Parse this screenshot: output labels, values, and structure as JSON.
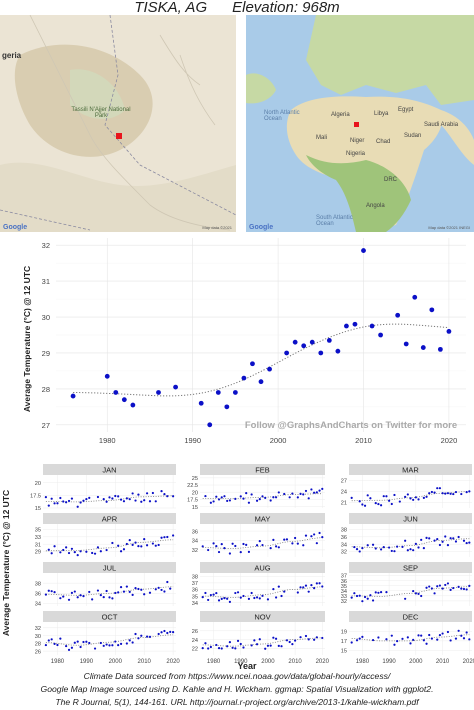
{
  "header": {
    "title": "TISKA, AG      Elevation: 968m"
  },
  "maps": {
    "local": {
      "labels": [
        "geria",
        "Tassili N'Ajjer National Park"
      ],
      "credit": "Map data ©2021",
      "logo": "Google",
      "marker_color": "#e8141c"
    },
    "world": {
      "labels": [
        "Algeria",
        "Libya",
        "Egypt",
        "Mali",
        "Niger",
        "Chad",
        "Sudan",
        "Nigeria",
        "Saudi Arabia",
        "DRC",
        "Angola",
        "South Atlantic Ocean",
        "North Atlantic Ocean"
      ],
      "credit": "Map data ©2021 INEGI",
      "logo": "Google",
      "marker_color": "#e8141c"
    }
  },
  "chart_data": [
    {
      "type": "scatter",
      "ylabel": "Average Temperature (°C) @ 12 UTC",
      "xlabel": "Year",
      "xlim": [
        1974,
        2022
      ],
      "ylim": [
        26.8,
        32.2
      ],
      "xticks": [
        1980,
        1990,
        2000,
        2010,
        2020
      ],
      "yticks": [
        27,
        28,
        29,
        30,
        31,
        32
      ],
      "point_color": "#0b10c7",
      "trend": "dotted loess",
      "annotation": "Follow @GraphsAndCharts on Twitter for more",
      "points": [
        [
          1976,
          27.8
        ],
        [
          1980,
          28.35
        ],
        [
          1981,
          27.9
        ],
        [
          1982,
          27.7
        ],
        [
          1983,
          27.55
        ],
        [
          1986,
          27.9
        ],
        [
          1988,
          28.05
        ],
        [
          1991,
          27.6
        ],
        [
          1992,
          27.0
        ],
        [
          1993,
          27.9
        ],
        [
          1994,
          27.5
        ],
        [
          1995,
          27.9
        ],
        [
          1996,
          28.3
        ],
        [
          1997,
          28.7
        ],
        [
          1998,
          28.2
        ],
        [
          1999,
          28.55
        ],
        [
          2001,
          29.0
        ],
        [
          2002,
          29.3
        ],
        [
          2003,
          29.2
        ],
        [
          2004,
          29.3
        ],
        [
          2005,
          29.0
        ],
        [
          2006,
          29.35
        ],
        [
          2007,
          29.05
        ],
        [
          2008,
          29.75
        ],
        [
          2009,
          29.8
        ],
        [
          2010,
          31.85
        ],
        [
          2011,
          29.75
        ],
        [
          2012,
          29.5
        ],
        [
          2014,
          30.05
        ],
        [
          2015,
          29.25
        ],
        [
          2016,
          30.55
        ],
        [
          2017,
          29.15
        ],
        [
          2018,
          30.2
        ],
        [
          2019,
          29.1
        ],
        [
          2020,
          29.6
        ]
      ]
    },
    {
      "type": "scatter",
      "layout": "facets",
      "ylabel": "Average Temperature (°C) @ 12 UTC",
      "xlabel": "Year",
      "xlim": [
        1975,
        2021
      ],
      "xticks": [
        1980,
        1990,
        2000,
        2010,
        2020
      ],
      "xtick_labels": [
        "1980",
        "1990",
        "2000",
        "2010",
        "2020"
      ],
      "point_color": "#0b10c7",
      "panels": [
        {
          "name": "JAN",
          "ylim": [
            15,
            21.5
          ],
          "yticks": [
            15.0,
            17.5,
            20.0
          ],
          "trend": [
            16.3,
            16.2,
            16.5,
            17.2,
            17.4
          ]
        },
        {
          "name": "FEB",
          "ylim": [
            14.5,
            26
          ],
          "yticks": [
            15.0,
            17.5,
            20.0,
            22.5,
            25.0
          ],
          "trend": [
            17.8,
            17.8,
            18.2,
            19.2,
            19.5
          ]
        },
        {
          "name": "MAR",
          "ylim": [
            19.5,
            28.5
          ],
          "yticks": [
            21,
            24,
            27
          ],
          "trend": [
            21.5,
            21.6,
            22.3,
            23.5,
            24.0
          ]
        },
        {
          "name": "APR",
          "ylim": [
            27.5,
            36.5
          ],
          "yticks": [
            29,
            31,
            33,
            35
          ],
          "trend": [
            29.2,
            29.3,
            30.0,
            31.5,
            32.2
          ]
        },
        {
          "name": "MAY",
          "ylim": [
            30.5,
            37.5
          ],
          "yticks": [
            32,
            34,
            36
          ],
          "trend": [
            32.5,
            32.3,
            32.8,
            33.8,
            34.6
          ]
        },
        {
          "name": "JUN",
          "ylim": [
            30.5,
            39.5
          ],
          "yticks": [
            32,
            34,
            36,
            38
          ],
          "trend": [
            33.3,
            33.0,
            33.6,
            35.0,
            35.5
          ]
        },
        {
          "name": "JUL",
          "ylim": [
            33.5,
            40
          ],
          "yticks": [
            34,
            36,
            38
          ],
          "trend": [
            35.8,
            35.6,
            36.0,
            36.8,
            37.3
          ]
        },
        {
          "name": "AUG",
          "ylim": [
            33.5,
            38.5
          ],
          "yticks": [
            34,
            35,
            36,
            37,
            38
          ],
          "trend": [
            35.0,
            34.8,
            35.2,
            36.0,
            36.4
          ]
        },
        {
          "name": "SEP",
          "ylim": [
            31,
            37.5
          ],
          "yticks": [
            32,
            33,
            34,
            35,
            36,
            37
          ],
          "trend": [
            33.0,
            32.9,
            33.5,
            34.5,
            34.8
          ]
        },
        {
          "name": "OCT",
          "ylim": [
            25,
            33.5
          ],
          "yticks": [
            26,
            28,
            30,
            32
          ],
          "trend": [
            28.2,
            27.5,
            28.3,
            29.5,
            30.2
          ]
        },
        {
          "name": "NOV",
          "ylim": [
            20.5,
            28
          ],
          "yticks": [
            22,
            24,
            26
          ],
          "trend": [
            22.8,
            22.5,
            23.0,
            24.0,
            24.4
          ]
        },
        {
          "name": "DEC",
          "ylim": [
            14,
            21
          ],
          "yticks": [
            15,
            17,
            19
          ],
          "trend": [
            17.5,
            17.0,
            17.0,
            17.8,
            18.3
          ]
        }
      ]
    }
  ],
  "footer": {
    "line1": "Climate Data sourced from https://www.ncei.noaa.gov/data/global-hourly/access/",
    "line2": "Google Map Image sourced using D. Kahle and H. Wickham. ggmap: Spatial Visualization with ggplot2.",
    "line3": "The R Journal, 5(1), 144-161. URL http://journal.r-project.org/archive/2013-1/kahle-wickham.pdf"
  }
}
